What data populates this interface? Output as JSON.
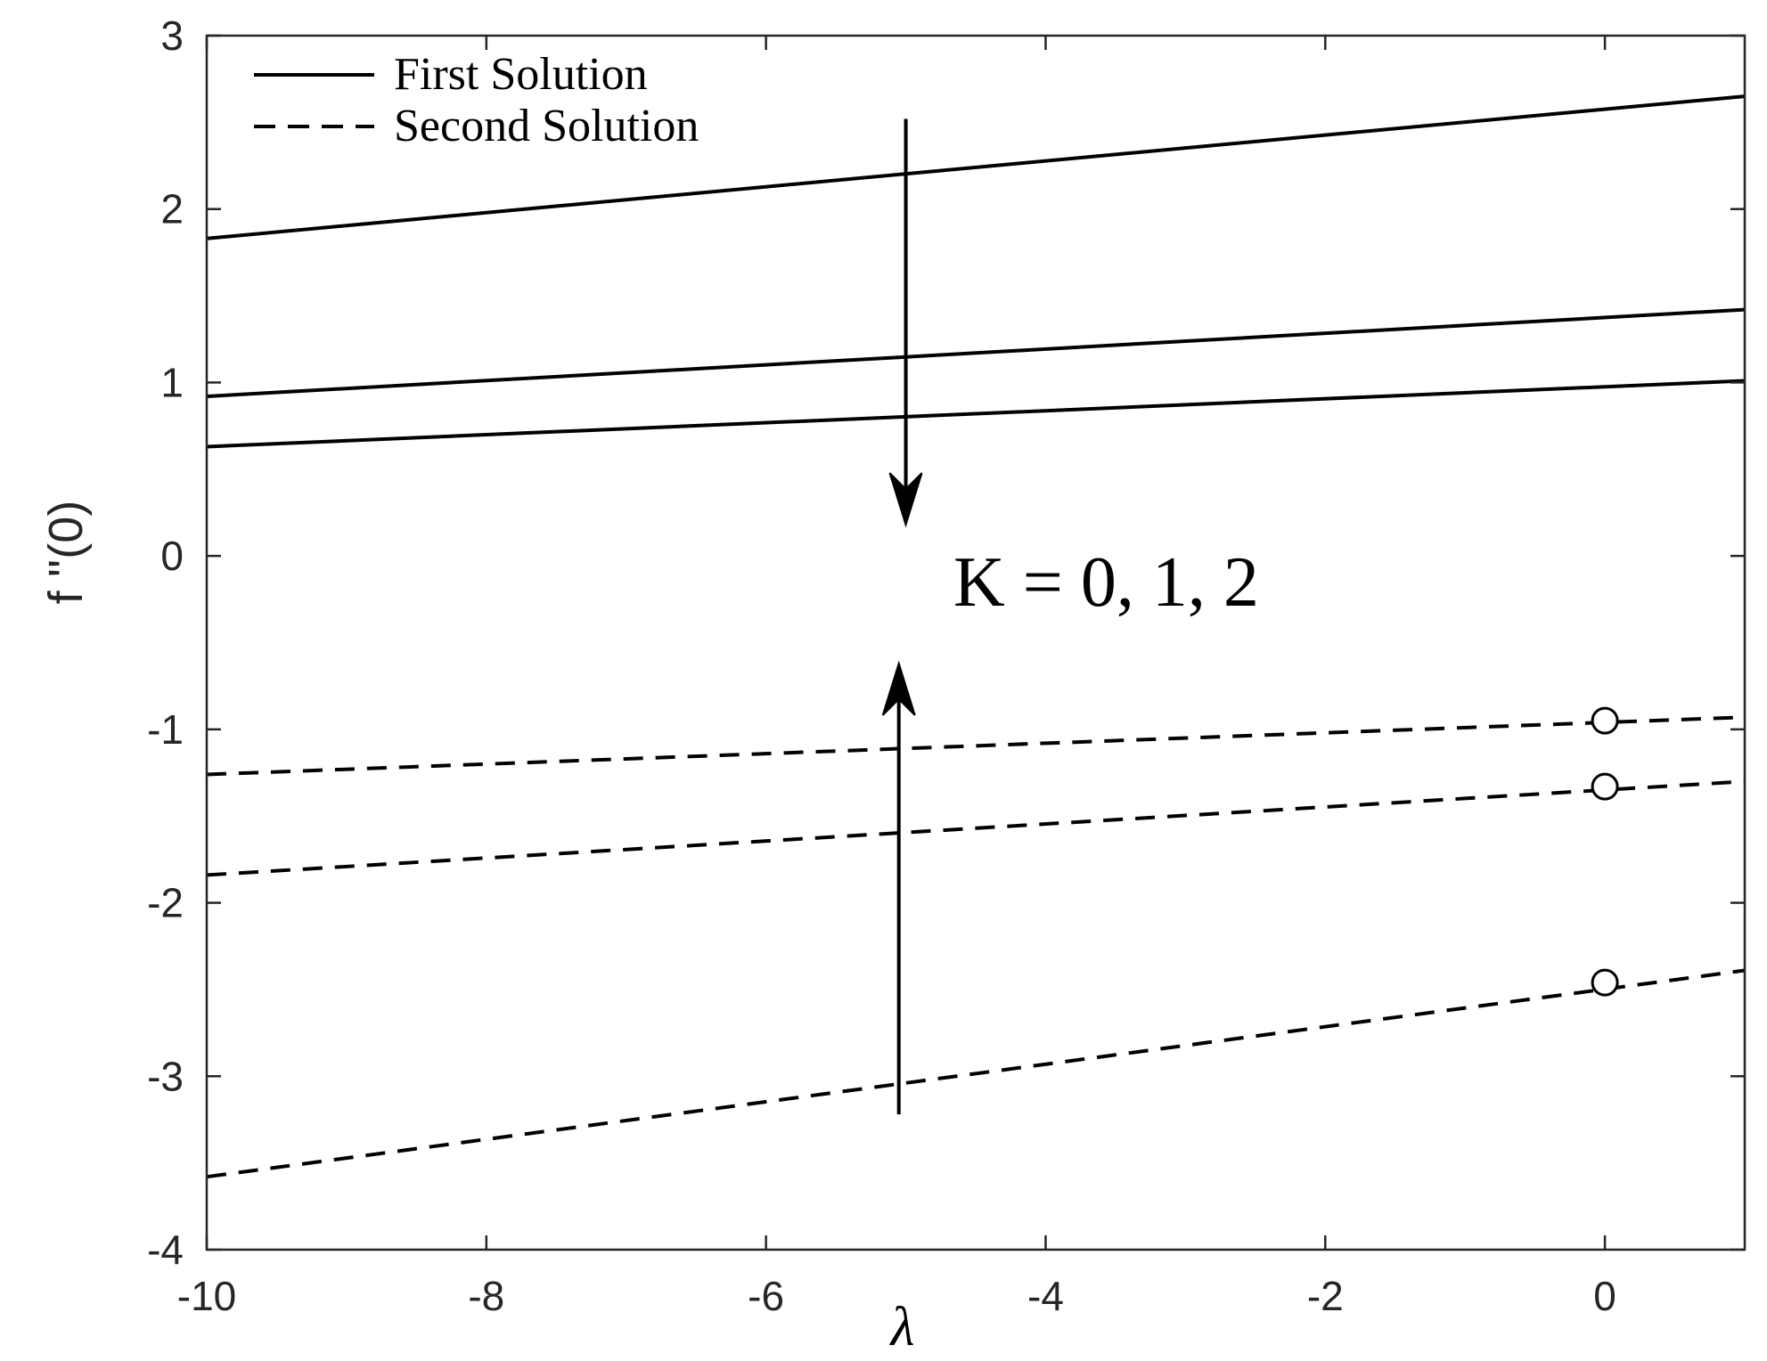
{
  "chart_data": {
    "type": "line",
    "title": "",
    "xlabel": "λ",
    "ylabel": "f ''(0)",
    "xlim": [
      -10,
      1
    ],
    "ylim": [
      -4,
      3
    ],
    "x_ticks": [
      -10,
      -8,
      -6,
      -4,
      -2,
      0
    ],
    "y_ticks": [
      -4,
      -3,
      -2,
      -1,
      0,
      1,
      2,
      3
    ],
    "x_tick_labels": [
      "-10",
      "-8",
      "-6",
      "-4",
      "-2",
      "0"
    ],
    "y_tick_labels": [
      "-4",
      "-3",
      "-2",
      "-1",
      "0",
      "1",
      "2",
      "3"
    ],
    "grid": false,
    "legend_position": "top-left",
    "legend": [
      {
        "label": "First Solution",
        "style": "solid"
      },
      {
        "label": "Second Solution",
        "style": "dashed"
      }
    ],
    "series": [
      {
        "group": "First Solution",
        "style": "solid",
        "x": [
          -10,
          1
        ],
        "y": [
          1.83,
          2.65
        ]
      },
      {
        "group": "First Solution",
        "style": "solid",
        "x": [
          -10,
          1
        ],
        "y": [
          0.92,
          1.42
        ]
      },
      {
        "group": "First Solution",
        "style": "solid",
        "x": [
          -10,
          1
        ],
        "y": [
          0.63,
          1.01
        ]
      },
      {
        "group": "Second Solution",
        "style": "dashed",
        "x": [
          -10,
          1
        ],
        "y": [
          -1.26,
          -0.93
        ]
      },
      {
        "group": "Second Solution",
        "style": "dashed",
        "x": [
          -10,
          1
        ],
        "y": [
          -1.84,
          -1.3
        ]
      },
      {
        "group": "Second Solution",
        "style": "dashed",
        "x": [
          -10,
          1
        ],
        "y": [
          -3.58,
          -2.39
        ]
      }
    ],
    "markers": [
      {
        "x": 0,
        "y": -0.95,
        "shape": "open-circle"
      },
      {
        "x": 0,
        "y": -1.33,
        "shape": "open-circle"
      },
      {
        "x": 0,
        "y": -2.46,
        "shape": "open-circle"
      }
    ],
    "annotations": [
      {
        "text": "K = 0, 1, 2"
      }
    ],
    "arrows": [
      {
        "from": [
          -5.0,
          2.52
        ],
        "to": [
          -5.0,
          0.18
        ]
      },
      {
        "from": [
          -5.05,
          -3.22
        ],
        "to": [
          -5.05,
          -0.62
        ]
      }
    ]
  }
}
